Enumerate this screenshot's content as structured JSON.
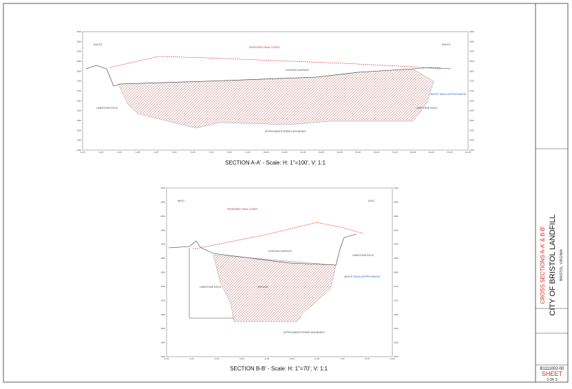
{
  "sections": [
    {
      "title": "SECTION A-A' - Scale: H: 1\"=100', V: 1:1",
      "left_label": "SOUTH",
      "right_label": "NORTH",
      "station_labels": [
        "0+00",
        "1+00",
        "2+00",
        "3+00",
        "4+00",
        "5+00",
        "6+00",
        "7+00",
        "8+00",
        "9+00",
        "10+00",
        "11+00",
        "12+00",
        "13+00",
        "14+00",
        "15+00",
        "16+00",
        "17+00",
        "18+00",
        "19+00",
        "20+00",
        "21+00"
      ],
      "elevation_labels": [
        "2000",
        "1950",
        "1900",
        "1850",
        "1800",
        "1750",
        "1700",
        "1650",
        "1600",
        "1550",
        "1500",
        "1450",
        "1400"
      ],
      "annotations": {
        "cover": "PROPOSED FINAL COVER",
        "surface": "EXISTING SURFACE",
        "rock_left": "LIMESTONE ROCK",
        "rock_right": "LIMESTONE ROCK",
        "water": "WATER TABLE (APPROXIMATE)",
        "boundary": "APPROXIMATE PERMIT BOUNDARY"
      }
    },
    {
      "title": "SECTION B-B' - Scale: H: 1\"=70', V: 1:1",
      "left_label": "WEST",
      "right_label": "EAST",
      "station_labels": [
        "0+00",
        "1+00",
        "2+00",
        "3+00",
        "4+00",
        "5+00",
        "6+00",
        "7+00",
        "8+00",
        "9+00"
      ],
      "elevation_labels": [
        "2100",
        "2050",
        "2000",
        "1950",
        "1900",
        "1850",
        "1800",
        "1750",
        "1700",
        "1650",
        "1600",
        "1550",
        "1500"
      ],
      "annotations": {
        "cover": "PROPOSED FINAL COVER",
        "surface": "EXISTING SURFACE",
        "rock_left": "LIMESTONE ROCK",
        "rock_right": "LIMESTONE ROCK",
        "water": "WATER TABLE (APPROXIMATE)",
        "refuse": "REFUSE",
        "boundary": "APPROXIMATE PERMIT BOUNDARY"
      }
    }
  ],
  "title_block": {
    "drawing_title": "CROSS SECTIONS A-A' & B-B'",
    "project": "CITY OF BRISTOL LANDFILL",
    "location": "BRISTOL, VIRGINIA",
    "sheet_label": "SHEET",
    "sheet_number": "3 OF 3",
    "drawing_number": "B1111002-00"
  }
}
